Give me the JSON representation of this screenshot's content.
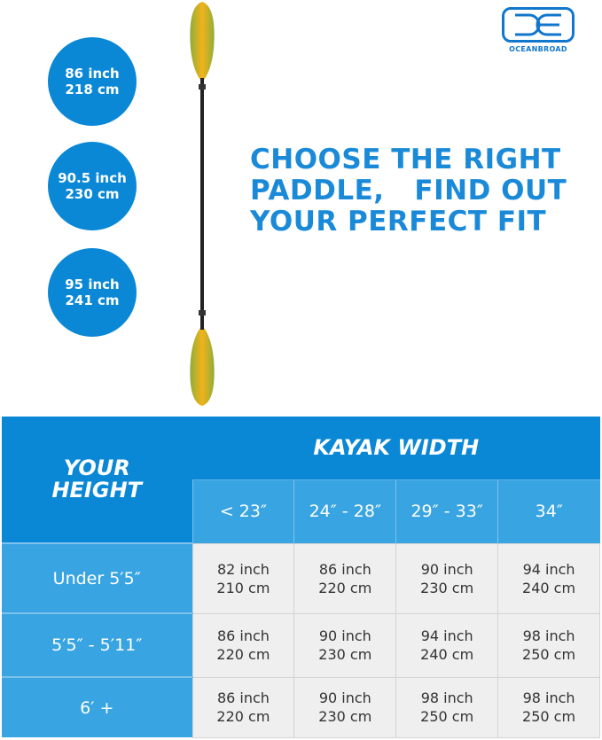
{
  "lengths": [
    {
      "inch": "86 inch",
      "cm": "218 cm"
    },
    {
      "inch": "90.5 inch",
      "cm": "230 cm"
    },
    {
      "inch": "95 inch",
      "cm": "241 cm"
    }
  ],
  "headline": [
    "CHOOSE THE RIGHT",
    "PADDLE,   FIND OUT",
    "YOUR PERFECT FIT"
  ],
  "logo": {
    "text": "OCEANBROAD"
  },
  "colors": {
    "primary": "#0a88d6",
    "secondary": "#39a4e2",
    "cell": "#efefef"
  },
  "table": {
    "corner": [
      "YOUR",
      "HEIGHT"
    ],
    "width_title": "KAYAK WIDTH",
    "widths": [
      "< 23″",
      "24″ - 28″",
      "29″ - 33″",
      "34″"
    ],
    "rows": [
      {
        "height": "Under 5′5″",
        "cells": [
          {
            "inch": "82 inch",
            "cm": "210 cm"
          },
          {
            "inch": "86 inch",
            "cm": "220 cm"
          },
          {
            "inch": "90 inch",
            "cm": "230 cm"
          },
          {
            "inch": "94 inch",
            "cm": "240 cm"
          }
        ]
      },
      {
        "height": "5′5″ - 5′11″",
        "cells": [
          {
            "inch": "86 inch",
            "cm": "220 cm"
          },
          {
            "inch": "90 inch",
            "cm": "230 cm"
          },
          {
            "inch": "94 inch",
            "cm": "240 cm"
          },
          {
            "inch": "98 inch",
            "cm": "250 cm"
          }
        ]
      },
      {
        "height": "6′ +",
        "cells": [
          {
            "inch": "86 inch",
            "cm": "220 cm"
          },
          {
            "inch": "90 inch",
            "cm": "230 cm"
          },
          {
            "inch": "98 inch",
            "cm": "250 cm"
          },
          {
            "inch": "98 inch",
            "cm": "250 cm"
          }
        ]
      }
    ]
  }
}
